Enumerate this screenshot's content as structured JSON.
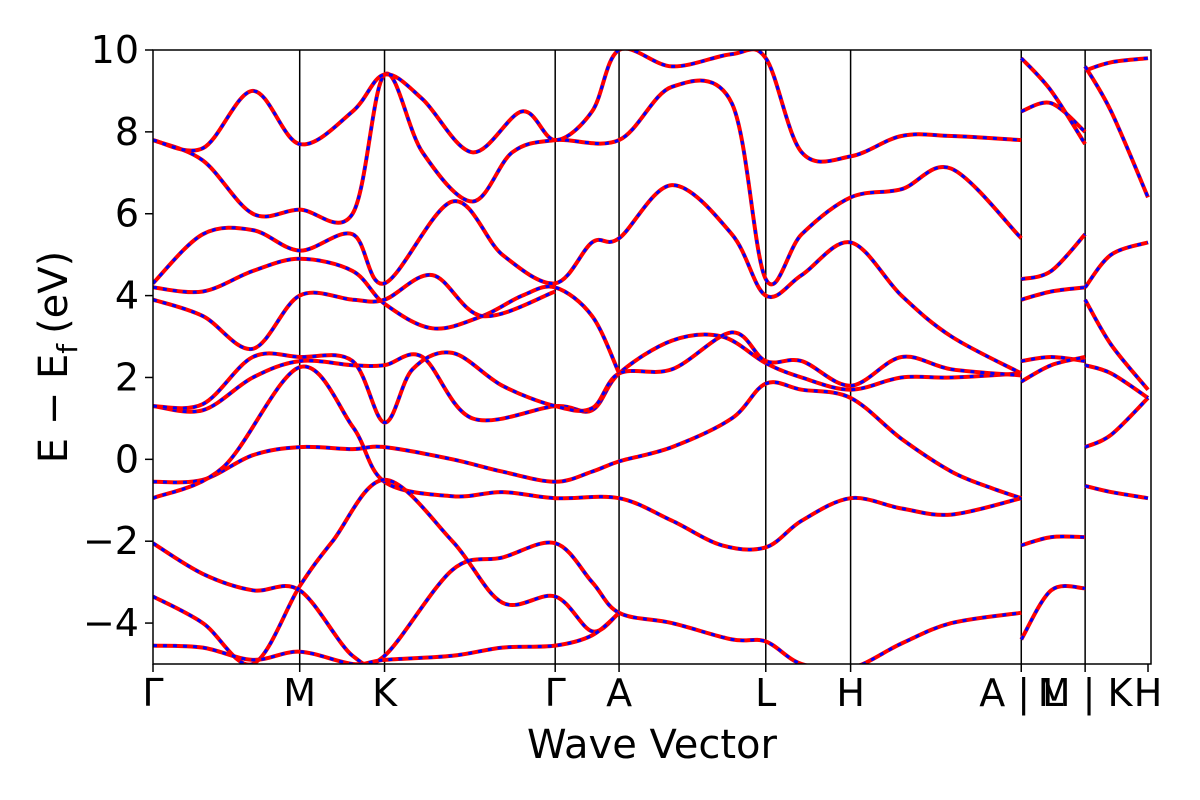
{
  "chart_data": {
    "type": "line",
    "title": "",
    "xlabel": "Wave Vector",
    "ylabel": "E − E",
    "ylabel_sub": "f",
    "ylabel_unit": "(eV)",
    "ylim": [
      -5,
      10
    ],
    "y_ticks": [
      -4,
      -2,
      0,
      2,
      4,
      6,
      8,
      10
    ],
    "y_tick_labels": [
      "−4",
      "−2",
      "0",
      "2",
      "4",
      "6",
      "8",
      "10"
    ],
    "x_range": [
      0,
      1
    ],
    "high_symmetry_points": [
      {
        "label": "Γ",
        "x": 0.0
      },
      {
        "label": "M",
        "x": 0.147
      },
      {
        "label": "K",
        "x": 0.232
      },
      {
        "label": "Γ",
        "x": 0.403
      },
      {
        "label": "A",
        "x": 0.467
      },
      {
        "label": "L",
        "x": 0.614
      },
      {
        "label": "H",
        "x": 0.699
      },
      {
        "label": "A | L",
        "x": 0.87
      },
      {
        "label": "M | K",
        "x": 0.934
      },
      {
        "label": "H",
        "x": 0.997
      }
    ],
    "colors": {
      "series_a": "#ff0000",
      "series_b": "#0000ff"
    },
    "series": [
      {
        "style": "solid",
        "color": "#ff0000",
        "bands": [
          [
            [
              0,
              -0.55
            ],
            [
              0.05,
              -0.5
            ],
            [
              0.1,
              0.1
            ],
            [
              0.147,
              0.3
            ],
            [
              0.2,
              0.25
            ],
            [
              0.232,
              0.3
            ],
            [
              0.3,
              0.0
            ],
            [
              0.35,
              -0.3
            ],
            [
              0.403,
              -0.55
            ],
            [
              0.44,
              -0.3
            ],
            [
              0.467,
              -0.05
            ],
            [
              0.52,
              0.3
            ],
            [
              0.58,
              1.0
            ],
            [
              0.614,
              1.85
            ],
            [
              0.65,
              1.7
            ],
            [
              0.699,
              1.5
            ],
            [
              0.75,
              0.5
            ],
            [
              0.8,
              -0.3
            ],
            [
              0.84,
              -0.7
            ],
            [
              0.87,
              -0.95
            ]
          ],
          [
            [
              0,
              -0.95
            ],
            [
              0.07,
              -0.2
            ],
            [
              0.147,
              2.25
            ],
            [
              0.2,
              0.8
            ],
            [
              0.232,
              -0.55
            ],
            [
              0.3,
              -0.9
            ],
            [
              0.35,
              -0.8
            ],
            [
              0.403,
              -0.95
            ],
            [
              0.467,
              -0.95
            ],
            [
              0.52,
              -1.5
            ],
            [
              0.57,
              -2.1
            ],
            [
              0.614,
              -2.15
            ],
            [
              0.65,
              -1.5
            ],
            [
              0.699,
              -0.95
            ],
            [
              0.75,
              -1.2
            ],
            [
              0.8,
              -1.35
            ],
            [
              0.87,
              -0.95
            ]
          ],
          [
            [
              0,
              1.3
            ],
            [
              0.05,
              1.2
            ],
            [
              0.1,
              2.0
            ],
            [
              0.147,
              2.4
            ],
            [
              0.2,
              2.3
            ],
            [
              0.232,
              2.3
            ],
            [
              0.27,
              2.5
            ],
            [
              0.32,
              1.0
            ],
            [
              0.403,
              1.3
            ],
            [
              0.44,
              1.2
            ],
            [
              0.467,
              2.1
            ],
            [
              0.52,
              2.9
            ],
            [
              0.57,
              3.0
            ],
            [
              0.614,
              2.35
            ],
            [
              0.65,
              2.0
            ],
            [
              0.699,
              1.7
            ],
            [
              0.75,
              2.0
            ],
            [
              0.8,
              2.0
            ],
            [
              0.87,
              2.1
            ]
          ],
          [
            [
              0,
              1.3
            ],
            [
              0.05,
              1.35
            ],
            [
              0.1,
              2.5
            ],
            [
              0.147,
              2.5
            ],
            [
              0.2,
              2.4
            ],
            [
              0.232,
              0.9
            ],
            [
              0.26,
              2.2
            ],
            [
              0.3,
              2.6
            ],
            [
              0.35,
              1.8
            ],
            [
              0.403,
              1.3
            ],
            [
              0.44,
              1.25
            ],
            [
              0.467,
              2.1
            ],
            [
              0.52,
              2.2
            ],
            [
              0.58,
              3.1
            ],
            [
              0.614,
              2.4
            ],
            [
              0.65,
              2.4
            ],
            [
              0.699,
              1.8
            ],
            [
              0.75,
              2.5
            ],
            [
              0.8,
              2.2
            ],
            [
              0.87,
              2.05
            ]
          ],
          [
            [
              0,
              4.2
            ],
            [
              0.05,
              4.1
            ],
            [
              0.1,
              4.6
            ],
            [
              0.147,
              4.9
            ],
            [
              0.2,
              4.6
            ],
            [
              0.232,
              3.8
            ],
            [
              0.28,
              3.2
            ],
            [
              0.33,
              3.5
            ],
            [
              0.37,
              4.0
            ],
            [
              0.403,
              4.2
            ],
            [
              0.44,
              3.5
            ],
            [
              0.467,
              2.1
            ]
          ],
          [
            [
              0,
              3.9
            ],
            [
              0.05,
              3.5
            ],
            [
              0.1,
              2.7
            ],
            [
              0.147,
              4.0
            ],
            [
              0.2,
              3.9
            ],
            [
              0.232,
              3.9
            ],
            [
              0.28,
              4.5
            ],
            [
              0.33,
              3.5
            ],
            [
              0.403,
              4.1
            ]
          ],
          [
            [
              0,
              4.3
            ],
            [
              0.05,
              5.5
            ],
            [
              0.1,
              5.6
            ],
            [
              0.147,
              5.1
            ],
            [
              0.2,
              5.5
            ],
            [
              0.232,
              4.3
            ],
            [
              0.3,
              6.3
            ],
            [
              0.35,
              5.0
            ],
            [
              0.403,
              4.3
            ],
            [
              0.44,
              5.3
            ],
            [
              0.467,
              5.4
            ],
            [
              0.52,
              6.7
            ],
            [
              0.58,
              5.5
            ],
            [
              0.614,
              4.0
            ],
            [
              0.65,
              4.5
            ],
            [
              0.699,
              5.3
            ],
            [
              0.75,
              4.0
            ],
            [
              0.8,
              3.0
            ],
            [
              0.87,
              2.1
            ]
          ],
          [
            [
              0,
              7.8
            ],
            [
              0.05,
              7.3
            ],
            [
              0.1,
              6.0
            ],
            [
              0.147,
              6.1
            ],
            [
              0.2,
              6.0
            ],
            [
              0.232,
              9.4
            ],
            [
              0.27,
              7.5
            ],
            [
              0.32,
              6.3
            ],
            [
              0.36,
              7.5
            ],
            [
              0.403,
              7.8
            ],
            [
              0.467,
              7.8
            ],
            [
              0.52,
              9.1
            ],
            [
              0.58,
              8.7
            ],
            [
              0.614,
              4.4
            ],
            [
              0.65,
              5.5
            ],
            [
              0.699,
              6.4
            ],
            [
              0.75,
              6.6
            ],
            [
              0.8,
              7.1
            ],
            [
              0.87,
              5.4
            ]
          ],
          [
            [
              0,
              7.8
            ],
            [
              0.05,
              7.6
            ],
            [
              0.1,
              9.0
            ],
            [
              0.147,
              7.7
            ],
            [
              0.2,
              8.5
            ],
            [
              0.232,
              9.4
            ],
            [
              0.27,
              8.8
            ],
            [
              0.32,
              7.5
            ],
            [
              0.37,
              8.5
            ],
            [
              0.403,
              7.8
            ],
            [
              0.44,
              8.5
            ],
            [
              0.467,
              10.0
            ],
            [
              0.52,
              9.6
            ],
            [
              0.58,
              9.9
            ],
            [
              0.614,
              9.8
            ],
            [
              0.65,
              7.5
            ],
            [
              0.699,
              7.4
            ],
            [
              0.75,
              7.9
            ],
            [
              0.8,
              7.9
            ],
            [
              0.87,
              7.8
            ]
          ],
          [
            [
              0,
              -2.05
            ],
            [
              0.05,
              -2.8
            ],
            [
              0.1,
              -3.2
            ],
            [
              0.147,
              -3.2
            ],
            [
              0.2,
              -4.8
            ],
            [
              0.232,
              -4.8
            ],
            [
              0.3,
              -2.7
            ],
            [
              0.35,
              -2.4
            ],
            [
              0.403,
              -2.05
            ],
            [
              0.44,
              -3.0
            ],
            [
              0.467,
              -3.75
            ],
            [
              0.52,
              -4.0
            ],
            [
              0.58,
              -4.4
            ],
            [
              0.614,
              -4.45
            ],
            [
              0.65,
              -5.0
            ],
            [
              0.699,
              -5.1
            ],
            [
              0.75,
              -4.5
            ],
            [
              0.8,
              -4.0
            ],
            [
              0.87,
              -3.75
            ]
          ],
          [
            [
              0,
              -3.35
            ],
            [
              0.05,
              -4.0
            ],
            [
              0.1,
              -5.0
            ],
            [
              0.147,
              -3.1
            ],
            [
              0.18,
              -2.0
            ],
            [
              0.232,
              -0.5
            ],
            [
              0.3,
              -2.0
            ],
            [
              0.35,
              -3.5
            ],
            [
              0.403,
              -3.35
            ],
            [
              0.44,
              -4.2
            ],
            [
              0.467,
              -3.75
            ]
          ],
          [
            [
              0,
              -4.55
            ],
            [
              0.05,
              -4.6
            ],
            [
              0.1,
              -4.9
            ],
            [
              0.147,
              -4.7
            ],
            [
              0.2,
              -5.0
            ],
            [
              0.232,
              -4.9
            ],
            [
              0.3,
              -4.8
            ],
            [
              0.35,
              -4.6
            ],
            [
              0.403,
              -4.55
            ],
            [
              0.44,
              -4.3
            ],
            [
              0.467,
              -3.75
            ]
          ],
          [
            [
              0.87,
              -2.1
            ],
            [
              0.9,
              -1.9
            ],
            [
              0.934,
              -1.9
            ]
          ],
          [
            [
              0.87,
              -4.4
            ],
            [
              0.9,
              -3.2
            ],
            [
              0.934,
              -3.15
            ]
          ],
          [
            [
              0.87,
              2.4
            ],
            [
              0.9,
              2.5
            ],
            [
              0.934,
              2.4
            ]
          ],
          [
            [
              0.87,
              1.9
            ],
            [
              0.9,
              2.3
            ],
            [
              0.934,
              2.5
            ]
          ],
          [
            [
              0.87,
              4.4
            ],
            [
              0.9,
              4.6
            ],
            [
              0.934,
              5.5
            ]
          ],
          [
            [
              0.87,
              3.9
            ],
            [
              0.9,
              4.1
            ],
            [
              0.934,
              4.2
            ]
          ],
          [
            [
              0.87,
              8.5
            ],
            [
              0.9,
              8.7
            ],
            [
              0.934,
              8.0
            ]
          ],
          [
            [
              0.87,
              9.8
            ],
            [
              0.9,
              9.0
            ],
            [
              0.934,
              7.7
            ]
          ],
          [
            [
              0.934,
              0.3
            ],
            [
              0.96,
              0.6
            ],
            [
              0.997,
              1.5
            ]
          ],
          [
            [
              0.934,
              -0.65
            ],
            [
              0.96,
              -0.8
            ],
            [
              0.997,
              -0.95
            ]
          ],
          [
            [
              0.934,
              3.9
            ],
            [
              0.96,
              2.8
            ],
            [
              0.997,
              1.7
            ]
          ],
          [
            [
              0.934,
              4.2
            ],
            [
              0.96,
              5.0
            ],
            [
              0.997,
              5.3
            ]
          ],
          [
            [
              0.934,
              9.5
            ],
            [
              0.96,
              9.7
            ],
            [
              0.997,
              9.8
            ]
          ],
          [
            [
              0.934,
              9.6
            ],
            [
              0.96,
              8.5
            ],
            [
              0.997,
              6.4
            ]
          ],
          [
            [
              0.934,
              2.3
            ],
            [
              0.96,
              2.1
            ],
            [
              0.997,
              1.5
            ]
          ]
        ]
      }
    ]
  }
}
